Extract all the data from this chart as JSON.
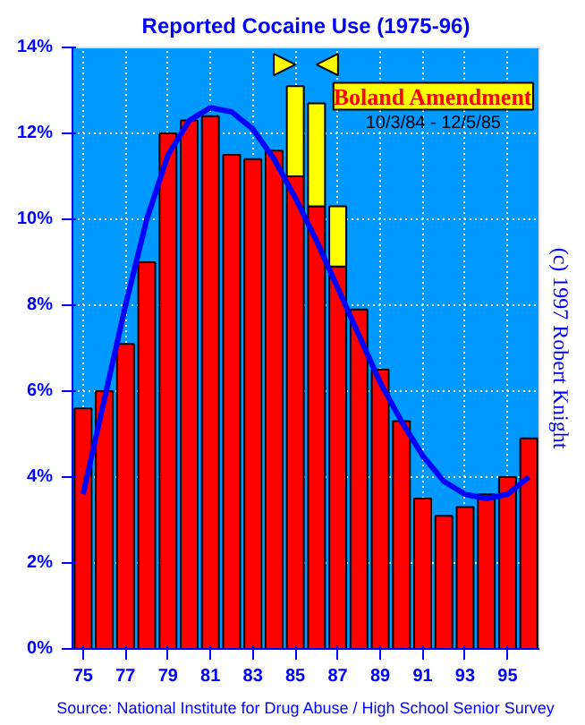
{
  "chart_data": {
    "type": "bar",
    "title": "Reported Cocaine Use (1975-96)",
    "stacked": true,
    "x": [
      75,
      76,
      77,
      78,
      79,
      80,
      81,
      82,
      83,
      84,
      85,
      86,
      87,
      88,
      89,
      90,
      91,
      92,
      93,
      94,
      95,
      96
    ],
    "series": [
      {
        "color": "#ff0000",
        "values": [
          5.6,
          6.0,
          7.1,
          9.0,
          12.0,
          12.3,
          12.4,
          11.5,
          11.4,
          11.6,
          11.0,
          10.3,
          8.9,
          7.9,
          6.5,
          5.3,
          3.5,
          3.1,
          3.3,
          3.6,
          4.0,
          4.9
        ]
      },
      {
        "color": "#ffff00",
        "values": [
          null,
          null,
          null,
          null,
          null,
          null,
          null,
          null,
          null,
          null,
          2.1,
          2.4,
          1.4,
          null,
          null,
          null,
          null,
          null,
          null,
          null,
          null,
          null
        ]
      },
      {
        "type": "line",
        "color": "#0000ff",
        "x": [
          75,
          76,
          77,
          78,
          79,
          80,
          81,
          82,
          83,
          84,
          85,
          86,
          87,
          88,
          89,
          90,
          91,
          92,
          93,
          94,
          95,
          96
        ],
        "values": [
          3.6,
          5.8,
          8.0,
          10.0,
          11.5,
          12.3,
          12.6,
          12.5,
          12.1,
          11.4,
          10.5,
          9.5,
          8.4,
          7.3,
          6.2,
          5.3,
          4.5,
          3.9,
          3.6,
          3.5,
          3.6,
          4.0
        ]
      }
    ],
    "xlim": [
      74.5,
      96.5
    ],
    "xticks": [
      75,
      77,
      79,
      81,
      83,
      85,
      87,
      89,
      91,
      93,
      95
    ],
    "ylim": [
      0,
      14
    ],
    "yticks": [
      {
        "value": 0,
        "label": "0%"
      },
      {
        "value": 2,
        "label": "2%"
      },
      {
        "value": 4,
        "label": "4%"
      },
      {
        "value": 6,
        "label": "6%"
      },
      {
        "value": 8,
        "label": "8%"
      },
      {
        "value": 10,
        "label": "10%"
      },
      {
        "value": 12,
        "label": "12%"
      },
      {
        "value": 14,
        "label": "14%"
      }
    ],
    "grid": true,
    "annotations": [
      "Boland Amendment",
      "10/3/84 - 12/5/85",
      "Source: National Institute for Drug Abuse / High School Senior Survey",
      "(c) 1997 Robert Knight"
    ]
  }
}
